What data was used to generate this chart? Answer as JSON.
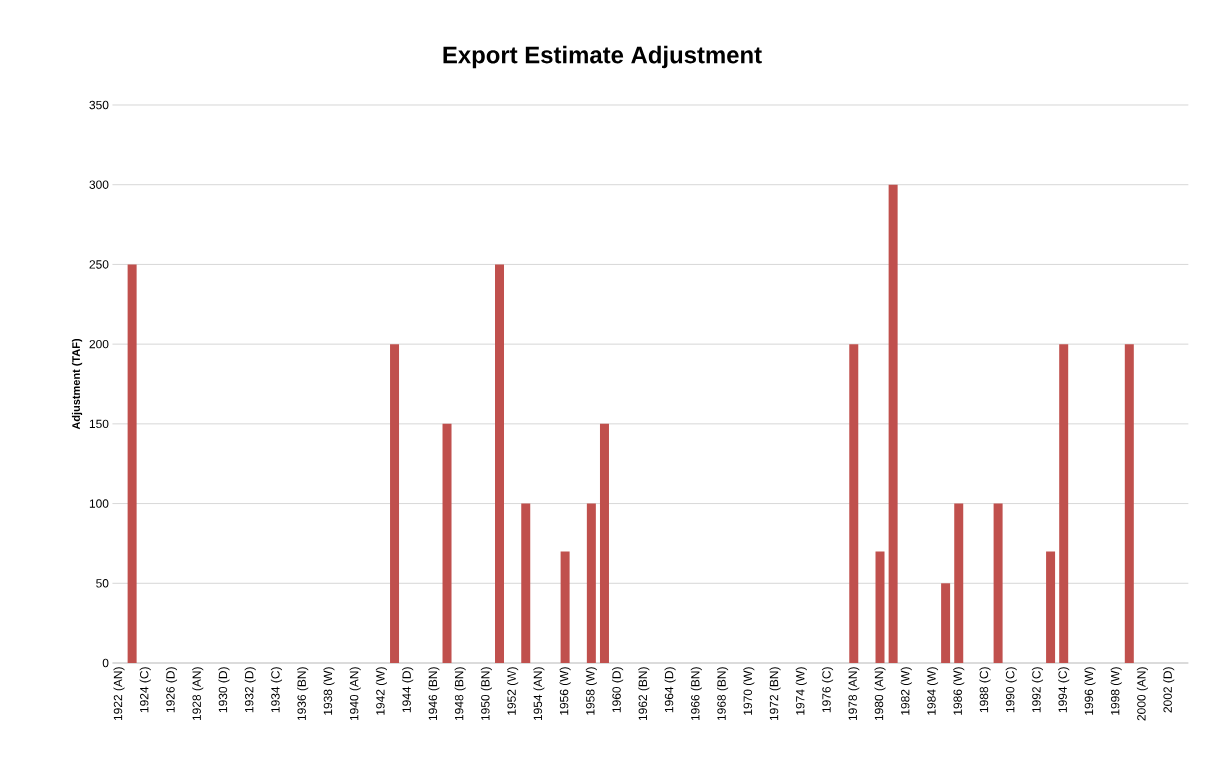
{
  "chart_data": {
    "type": "bar",
    "title": "Export Estimate Adjustment",
    "ylabel": "Adjustment (TAF)",
    "categories": [
      "1922 (AN)",
      null,
      "1924 (C)",
      null,
      "1926 (D)",
      null,
      "1928 (AN)",
      null,
      "1930 (D)",
      null,
      "1932 (D)",
      null,
      "1934 (C)",
      null,
      "1936 (BN)",
      null,
      "1938 (W)",
      null,
      "1940 (AN)",
      null,
      "1942 (W)",
      null,
      "1944 (D)",
      null,
      "1946 (BN)",
      null,
      "1948 (BN)",
      null,
      "1950 (BN)",
      null,
      "1952 (W)",
      null,
      "1954 (AN)",
      null,
      "1956 (W)",
      null,
      "1958 (W)",
      null,
      "1960 (D)",
      null,
      "1962 (BN)",
      null,
      "1964 (D)",
      null,
      "1966 (BN)",
      null,
      "1968 (BN)",
      null,
      "1970 (W)",
      null,
      "1972 (BN)",
      null,
      "1974 (W)",
      null,
      "1976 (C)",
      null,
      "1978 (AN)",
      null,
      "1980 (AN)",
      null,
      "1982 (W)",
      null,
      "1984 (W)",
      null,
      "1986 (W)",
      null,
      "1988 (C)",
      null,
      "1990 (C)",
      null,
      "1992 (C)",
      null,
      "1994 (C)",
      null,
      "1996 (W)",
      null,
      "1998 (W)",
      null,
      "2000 (AN)",
      null,
      "2002 (D)",
      null
    ],
    "values": [
      0,
      250,
      0,
      0,
      0,
      0,
      0,
      0,
      0,
      0,
      0,
      0,
      0,
      0,
      0,
      0,
      0,
      0,
      0,
      0,
      0,
      200,
      0,
      0,
      0,
      150,
      0,
      0,
      0,
      250,
      0,
      100,
      0,
      0,
      70,
      0,
      100,
      150,
      0,
      0,
      0,
      0,
      0,
      0,
      0,
      0,
      0,
      0,
      0,
      0,
      0,
      0,
      0,
      0,
      0,
      0,
      200,
      0,
      70,
      300,
      0,
      0,
      0,
      50,
      100,
      0,
      0,
      100,
      0,
      0,
      0,
      70,
      200,
      0,
      0,
      0,
      0,
      200,
      0,
      0,
      0,
      0
    ],
    "color": "#c0504d",
    "ylim": [
      0,
      350
    ],
    "yticks": [
      0,
      50,
      100,
      150,
      200,
      250,
      300,
      350
    ],
    "grid": "y"
  }
}
